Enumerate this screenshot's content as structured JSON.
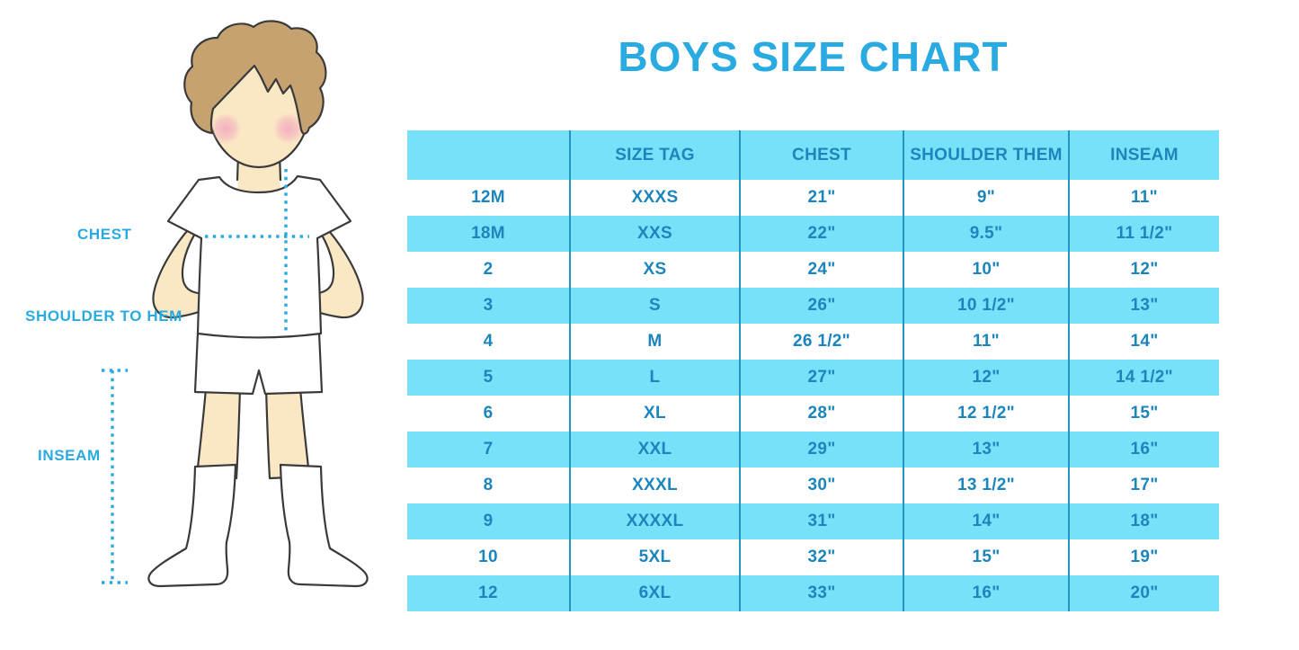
{
  "title": "BOYS SIZE CHART",
  "figure": {
    "chest_label": "CHEST",
    "shoulder_to_hem_label": "SHOULDER TO HEM",
    "inseam_label": "INSEAM"
  },
  "table": {
    "headers": [
      "",
      "SIZE TAG",
      "CHEST",
      "SHOULDER THEM",
      "INSEAM"
    ],
    "rows": [
      [
        "12M",
        "XXXS",
        "21\"",
        "9\"",
        "11\""
      ],
      [
        "18M",
        "XXS",
        "22\"",
        "9.5\"",
        "11 1/2\""
      ],
      [
        "2",
        "XS",
        "24\"",
        "10\"",
        "12\""
      ],
      [
        "3",
        "S",
        "26\"",
        "10 1/2\"",
        "13\""
      ],
      [
        "4",
        "M",
        "26 1/2\"",
        "11\"",
        "14\""
      ],
      [
        "5",
        "L",
        "27\"",
        "12\"",
        "14 1/2\""
      ],
      [
        "6",
        "XL",
        "28\"",
        "12 1/2\"",
        "15\""
      ],
      [
        "7",
        "XXL",
        "29\"",
        "13\"",
        "16\""
      ],
      [
        "8",
        "XXXL",
        "30\"",
        "13 1/2\"",
        "17\""
      ],
      [
        "9",
        "XXXXL",
        "31\"",
        "14\"",
        "18\""
      ],
      [
        "10",
        "5XL",
        "32\"",
        "15\"",
        "19\""
      ],
      [
        "12",
        "6XL",
        "33\"",
        "16\"",
        "20\""
      ]
    ]
  },
  "chart_data": {
    "type": "table",
    "title": "BOYS SIZE CHART",
    "columns": [
      "",
      "SIZE TAG",
      "CHEST",
      "SHOULDER THEM",
      "INSEAM"
    ],
    "rows": [
      [
        "12M",
        "XXXS",
        "21\"",
        "9\"",
        "11\""
      ],
      [
        "18M",
        "XXS",
        "22\"",
        "9.5\"",
        "11 1/2\""
      ],
      [
        "2",
        "XS",
        "24\"",
        "10\"",
        "12\""
      ],
      [
        "3",
        "S",
        "26\"",
        "10 1/2\"",
        "13\""
      ],
      [
        "4",
        "M",
        "26 1/2\"",
        "11\"",
        "14\""
      ],
      [
        "5",
        "L",
        "27\"",
        "12\"",
        "14 1/2\""
      ],
      [
        "6",
        "XL",
        "28\"",
        "12 1/2\"",
        "15\""
      ],
      [
        "7",
        "XXL",
        "29\"",
        "13\"",
        "16\""
      ],
      [
        "8",
        "XXXL",
        "30\"",
        "13 1/2\"",
        "17\""
      ],
      [
        "9",
        "XXXXL",
        "31\"",
        "14\"",
        "18\""
      ],
      [
        "10",
        "5XL",
        "32\"",
        "15\"",
        "19\""
      ],
      [
        "12",
        "6XL",
        "33\"",
        "16\"",
        "20\""
      ]
    ],
    "annotations": [
      "CHEST",
      "SHOULDER TO HEM",
      "INSEAM"
    ],
    "layout": {
      "zebra_striping": true,
      "header_row": true,
      "column_dividers": true
    }
  },
  "colors": {
    "accent_blue": "#29ABE2",
    "row_blue": "#77E1FA",
    "table_text": "#1C86BC",
    "divider": "#2495C2",
    "dotted_line": "#29A9E0",
    "skin": "#FAE7C4",
    "hair": "#C7A271",
    "cheek": "#F2AFC1",
    "outline": "#3A3A3A"
  }
}
